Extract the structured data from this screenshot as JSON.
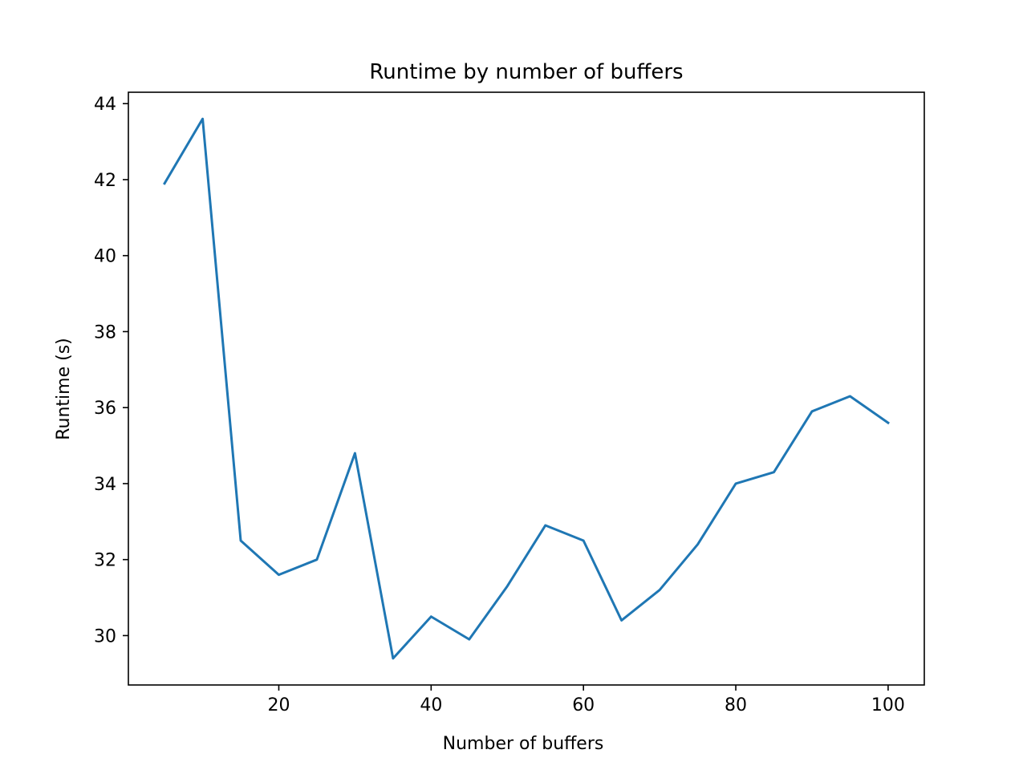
{
  "chart_data": {
    "type": "line",
    "title": "Runtime by number of buffers",
    "xlabel": "Number of buffers",
    "ylabel": "Runtime (s)",
    "xlim": [
      0.25,
      104.75
    ],
    "ylim": [
      28.7,
      44.3
    ],
    "xticks": [
      20,
      40,
      60,
      80,
      100
    ],
    "xtick_labels": [
      "20",
      "40",
      "60",
      "80",
      "100"
    ],
    "yticks": [
      30,
      32,
      34,
      36,
      38,
      40,
      42,
      44
    ],
    "ytick_labels": [
      "30",
      "32",
      "34",
      "36",
      "38",
      "40",
      "42",
      "44"
    ],
    "grid": false,
    "legend": "none",
    "series": [
      {
        "color": "#1f77b4",
        "x": [
          5,
          10,
          15,
          20,
          25,
          30,
          35,
          40,
          45,
          50,
          55,
          60,
          65,
          70,
          75,
          80,
          85,
          90,
          95,
          100
        ],
        "values": [
          41.9,
          43.6,
          32.5,
          31.6,
          32.0,
          34.8,
          29.4,
          30.5,
          29.9,
          31.3,
          32.9,
          32.5,
          30.4,
          31.2,
          32.4,
          34.0,
          34.3,
          35.9,
          36.3,
          35.6
        ]
      }
    ]
  }
}
